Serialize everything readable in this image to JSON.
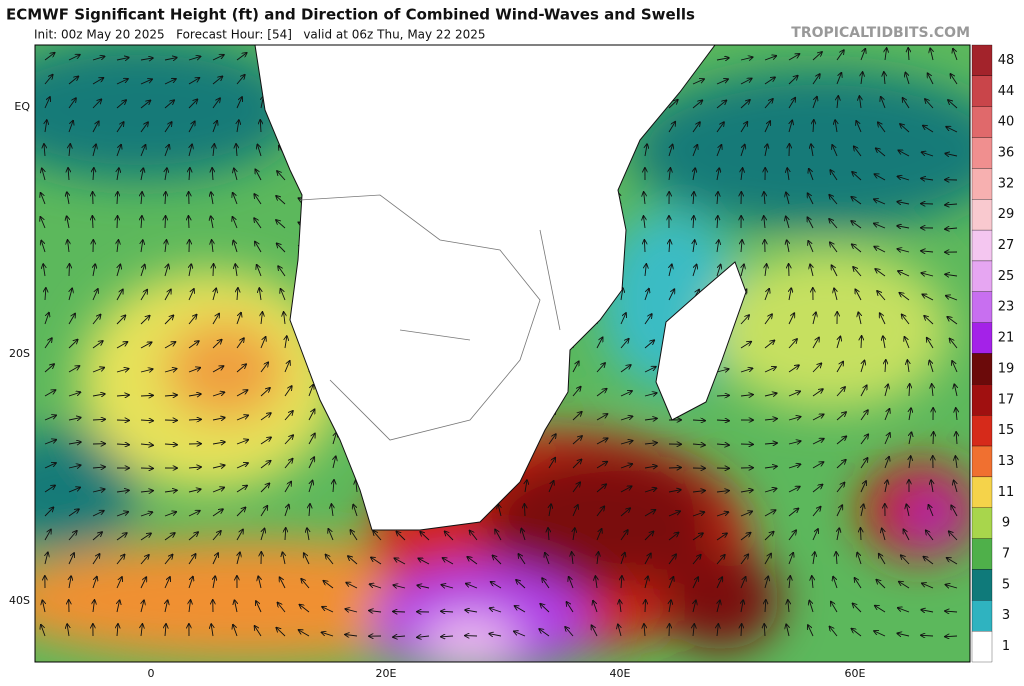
{
  "header": {
    "title": "ECMWF Significant Height (ft) and Direction of Combined Wind-Waves and Swells",
    "subtitle": "Init: 00z May 20 2025   Forecast Hour: [54]   valid at 06z Thu, May 22 2025",
    "watermark": "TROPICALTIDBITS.COM"
  },
  "axes": {
    "lat_labels": [
      "EQ",
      "20S",
      "40S"
    ],
    "lon_labels": [
      "0",
      "20E",
      "40E",
      "60E"
    ]
  },
  "colorbar": {
    "labels": [
      "48",
      "44",
      "40",
      "36",
      "32",
      "29",
      "27",
      "25",
      "23",
      "21",
      "19",
      "17",
      "15",
      "13",
      "11",
      "9",
      "7",
      "5",
      "3",
      "1"
    ],
    "colors": [
      "#a3232b",
      "#c9454a",
      "#e0696b",
      "#f08f8f",
      "#f7b0b0",
      "#f9c9cf",
      "#f4c6f0",
      "#e6a6f2",
      "#c86ff0",
      "#a422e8",
      "#6b0a0a",
      "#a01010",
      "#d62a1a",
      "#f07030",
      "#f5d34a",
      "#a8d64c",
      "#4fb04a",
      "#0f7a7a",
      "#2fb3c0",
      "#ffffff"
    ]
  }
}
